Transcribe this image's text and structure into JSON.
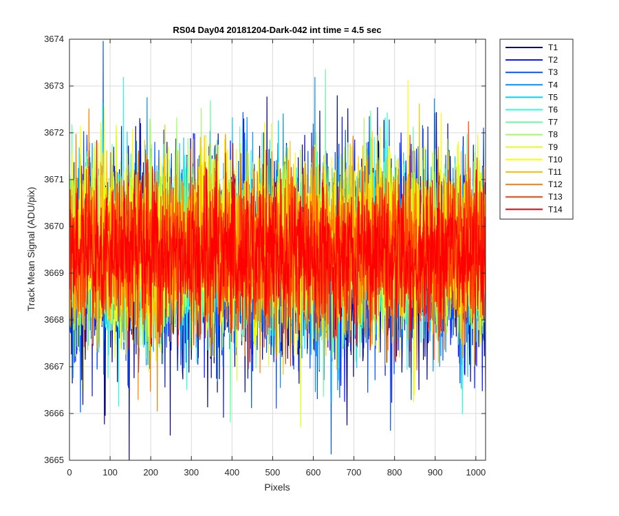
{
  "chart_data": {
    "type": "line",
    "title": "RS04 Day04 20181204-Dark-042 int time = 4.5 sec",
    "xlabel": "Pixels",
    "ylabel": "Track Mean Signal (ADU/pix)",
    "xlim": [
      0,
      1024
    ],
    "ylim": [
      3665,
      3674
    ],
    "xticks": [
      0,
      100,
      200,
      300,
      400,
      500,
      600,
      700,
      800,
      900,
      1000
    ],
    "yticks": [
      3665,
      3666,
      3667,
      3668,
      3669,
      3670,
      3671,
      3672,
      3673,
      3674
    ],
    "grid": true,
    "legend_position": "outside-top-right",
    "num_points": 1024,
    "series": [
      {
        "name": "T1",
        "color": "#00008f",
        "mean": 3669.2,
        "std": 1.2
      },
      {
        "name": "T2",
        "color": "#0010ff",
        "mean": 3669.3,
        "std": 1.1
      },
      {
        "name": "T3",
        "color": "#0050ff",
        "mean": 3669.3,
        "std": 1.05
      },
      {
        "name": "T4",
        "color": "#0090ff",
        "mean": 3669.4,
        "std": 1.0
      },
      {
        "name": "T5",
        "color": "#00d0ff",
        "mean": 3669.4,
        "std": 0.95
      },
      {
        "name": "T6",
        "color": "#20ffdf",
        "mean": 3669.5,
        "std": 0.95
      },
      {
        "name": "T7",
        "color": "#60ff9f",
        "mean": 3669.5,
        "std": 0.95
      },
      {
        "name": "T8",
        "color": "#9fff60",
        "mean": 3669.5,
        "std": 0.95
      },
      {
        "name": "T9",
        "color": "#dfff20",
        "mean": 3669.6,
        "std": 0.95
      },
      {
        "name": "T10",
        "color": "#ffff00",
        "mean": 3669.6,
        "std": 0.95
      },
      {
        "name": "T11",
        "color": "#ffc000",
        "mean": 3669.6,
        "std": 0.9
      },
      {
        "name": "T12",
        "color": "#ff8000",
        "mean": 3669.5,
        "std": 0.9
      },
      {
        "name": "T13",
        "color": "#ff4000",
        "mean": 3669.4,
        "std": 0.85
      },
      {
        "name": "T14",
        "color": "#ff0000",
        "mean": 3669.4,
        "std": 0.8
      }
    ]
  }
}
